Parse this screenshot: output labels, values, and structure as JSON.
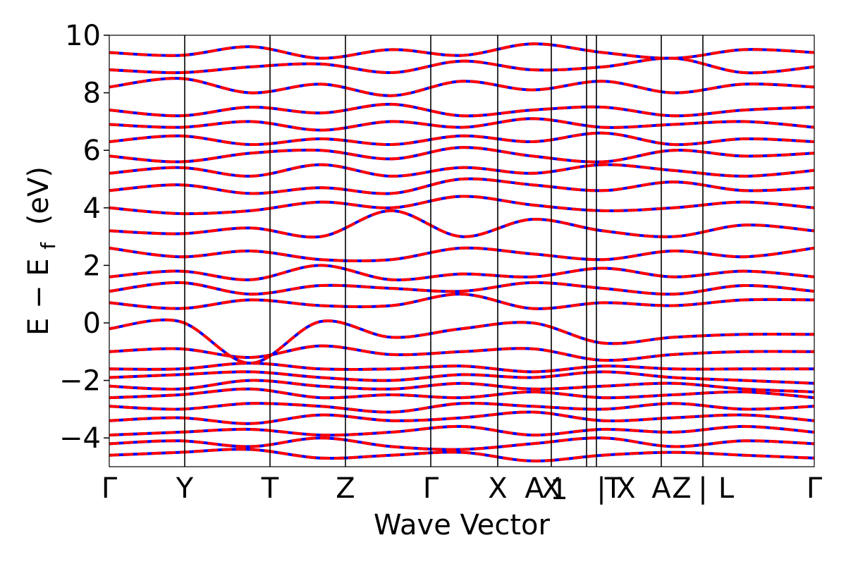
{
  "chart_data": {
    "type": "line",
    "xlabel": "Wave Vector",
    "ylabel_main": "E − E",
    "ylabel_sub": "f",
    "ylabel_unit": "(eV)",
    "ylim": [
      -5,
      10
    ],
    "ytick_values": [
      -4,
      -2,
      0,
      2,
      4,
      6,
      8,
      10
    ],
    "ytick_labels": [
      "−4",
      "−2",
      "0",
      "2",
      "4",
      "6",
      "8",
      "10"
    ],
    "xlim": [
      0,
      10
    ],
    "high_symmetry_points": [
      {
        "label": "Γ",
        "x": 0.0
      },
      {
        "label": "Y",
        "x": 1.07
      },
      {
        "label": "T",
        "x": 2.28
      },
      {
        "label": "Z",
        "x": 3.35
      },
      {
        "label": "Γ",
        "x": 4.56
      },
      {
        "label": "X",
        "x": 5.51
      },
      {
        "label": "A",
        "x": 6.03
      },
      {
        "label": "X",
        "x": 6.27
      },
      {
        "label": "1",
        "x": 6.38
      },
      {
        "label": "|",
        "x": 6.98
      },
      {
        "label": "T",
        "x": 7.15
      },
      {
        "label": "X",
        "x": 7.33
      },
      {
        "label": "A",
        "x": 7.83
      },
      {
        "label": "Z",
        "x": 8.12
      },
      {
        "label": "|",
        "x": 8.42
      },
      {
        "label": "L",
        "x": 8.75
      },
      {
        "label": "Γ",
        "x": 10.0
      }
    ],
    "segment_boundaries": [
      1.07,
      2.28,
      3.35,
      4.56,
      5.51,
      6.27,
      6.77,
      6.91,
      7.83,
      8.42
    ],
    "series": [
      {
        "style": "solid",
        "color": "#0000ff"
      },
      {
        "style": "dashed",
        "color": "#ff0000"
      }
    ],
    "bands": [
      [
        -4.6,
        -4.5,
        -4.4,
        -4.7,
        -4.6,
        -4.5,
        -4.8,
        -4.6,
        -4.5,
        -4.6,
        -4.7
      ],
      [
        -4.2,
        -4.1,
        -4.3,
        -4.0,
        -4.3,
        -4.4,
        -4.2,
        -4.0,
        -4.3,
        -4.1,
        -4.2
      ],
      [
        -3.9,
        -3.8,
        -3.7,
        -3.9,
        -3.8,
        -3.6,
        -3.9,
        -3.7,
        -3.8,
        -3.6,
        -3.8
      ],
      [
        -3.4,
        -3.3,
        -3.5,
        -3.2,
        -3.4,
        -3.3,
        -3.1,
        -3.4,
        -3.3,
        -3.2,
        -3.4
      ],
      [
        -2.9,
        -3.0,
        -2.8,
        -2.9,
        -3.1,
        -2.8,
        -2.9,
        -3.0,
        -2.8,
        -3.0,
        -2.9
      ],
      [
        -2.6,
        -2.5,
        -2.3,
        -2.6,
        -2.5,
        -2.6,
        -2.4,
        -2.6,
        -2.5,
        -2.4,
        -2.6
      ],
      [
        -2.2,
        -2.3,
        -2.0,
        -2.2,
        -2.3,
        -2.1,
        -2.3,
        -2.2,
        -2.1,
        -2.3,
        -2.4
      ],
      [
        -1.9,
        -1.8,
        -1.7,
        -1.9,
        -2.0,
        -1.8,
        -1.9,
        -1.7,
        -1.9,
        -2.0,
        -2.1
      ],
      [
        -1.6,
        -1.6,
        -1.4,
        -1.6,
        -1.6,
        -1.5,
        -1.7,
        -1.5,
        -1.6,
        -1.6,
        -1.6
      ],
      [
        -1.0,
        -0.9,
        -1.2,
        -0.8,
        -1.1,
        -1.0,
        -0.9,
        -1.3,
        -1.1,
        -1.0,
        -1.0
      ],
      [
        -0.2,
        0.05,
        -1.4,
        0.05,
        -0.5,
        -0.2,
        0.0,
        -0.7,
        -0.5,
        -0.4,
        -0.4
      ],
      [
        0.7,
        0.5,
        0.8,
        0.6,
        0.6,
        1.0,
        0.5,
        0.7,
        0.6,
        0.8,
        0.8
      ],
      [
        1.1,
        1.4,
        1.0,
        1.3,
        1.2,
        1.1,
        1.4,
        1.2,
        1.0,
        1.3,
        1.1
      ],
      [
        1.6,
        1.8,
        1.5,
        2.0,
        1.5,
        1.7,
        1.6,
        1.9,
        1.6,
        1.8,
        1.6
      ],
      [
        2.6,
        2.3,
        2.5,
        2.2,
        2.2,
        2.6,
        2.4,
        2.2,
        2.5,
        2.3,
        2.6
      ],
      [
        3.2,
        3.1,
        3.3,
        3.0,
        3.9,
        3.0,
        3.6,
        3.2,
        3.0,
        3.4,
        3.2
      ],
      [
        4.0,
        3.8,
        3.9,
        4.2,
        4.0,
        4.4,
        4.1,
        3.9,
        4.0,
        4.2,
        4.0
      ],
      [
        4.6,
        4.8,
        4.5,
        4.7,
        4.5,
        5.0,
        4.8,
        4.6,
        4.9,
        4.6,
        4.7
      ],
      [
        5.2,
        5.4,
        5.1,
        5.5,
        5.1,
        5.4,
        5.2,
        5.5,
        5.3,
        5.1,
        5.3
      ],
      [
        5.8,
        5.6,
        5.9,
        6.0,
        5.7,
        6.1,
        5.8,
        5.6,
        6.0,
        5.8,
        5.9
      ],
      [
        6.3,
        6.5,
        6.2,
        6.4,
        6.2,
        6.5,
        6.3,
        6.6,
        6.2,
        6.4,
        6.3
      ],
      [
        6.9,
        6.8,
        7.0,
        6.7,
        7.0,
        6.8,
        7.1,
        6.8,
        6.9,
        7.0,
        6.8
      ],
      [
        7.4,
        7.2,
        7.5,
        7.3,
        7.6,
        7.2,
        7.4,
        7.5,
        7.2,
        7.4,
        7.5
      ],
      [
        8.2,
        8.5,
        8.0,
        8.3,
        7.9,
        8.4,
        8.1,
        8.4,
        8.0,
        8.3,
        8.2
      ],
      [
        8.8,
        8.7,
        8.9,
        9.0,
        8.7,
        9.1,
        8.8,
        8.9,
        9.2,
        8.7,
        8.9
      ],
      [
        9.4,
        9.3,
        9.6,
        9.2,
        9.5,
        9.3,
        9.7,
        9.4,
        9.2,
        9.5,
        9.4
      ]
    ]
  }
}
